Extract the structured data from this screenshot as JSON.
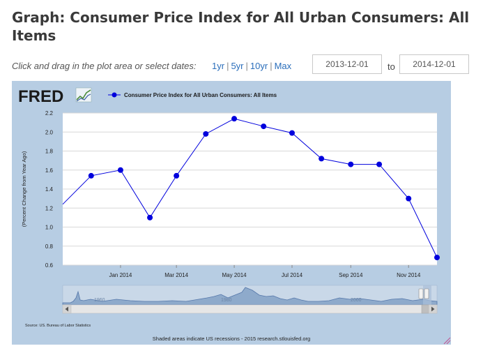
{
  "page": {
    "title": "Graph: Consumer Price Index for All Urban Consumers: All Items"
  },
  "controls": {
    "hint": "Click and drag in the plot area or select dates:",
    "range_links": [
      "1yr",
      "5yr",
      "10yr",
      "Max"
    ],
    "start_date": "2013-12-01",
    "to_label": "to",
    "end_date": "2014-12-01"
  },
  "chart": {
    "logo_text": "FRED",
    "source": "Source: US. Bureau of Labor Statistics",
    "footer": "Shaded areas indicate US recessions - 2015 research.stlouisfed.org",
    "navigator_labels": [
      "1960",
      "1980",
      "2000"
    ]
  },
  "colors": {
    "panel_bg": "#b7cde3",
    "plot_bg": "#ffffff",
    "series": "#0000dd",
    "grid": "#d8d8d8",
    "navigator_fill": "#8eaacb",
    "navigator_line": "#5577aa"
  },
  "chart_data": {
    "type": "line",
    "title": "Consumer Price Index for All Urban Consumers: All Items",
    "xlabel": "",
    "ylabel": "(Percent Change from Year Ago)",
    "legend": "Consumer Price Index for All Urban Consumers: All Items",
    "legend_position": "top",
    "grid": true,
    "ylim": [
      0.6,
      2.2
    ],
    "yticks": [
      0.6,
      0.8,
      1.0,
      1.2,
      1.4,
      1.6,
      1.8,
      2.0,
      2.2
    ],
    "xlim": [
      "2013-11-01",
      "2014-12-01"
    ],
    "xtick_labels": [
      "Jan 2014",
      "Mar 2014",
      "May 2014",
      "Jul 2014",
      "Sep 2014",
      "Nov 2014"
    ],
    "xtick_dates": [
      "2014-01-01",
      "2014-03-01",
      "2014-05-01",
      "2014-07-01",
      "2014-09-01",
      "2014-11-01"
    ],
    "series": [
      {
        "name": "Consumer Price Index for All Urban Consumers: All Items",
        "x": [
          "2013-11-01",
          "2013-12-01",
          "2014-01-01",
          "2014-02-01",
          "2014-03-01",
          "2014-04-01",
          "2014-05-01",
          "2014-06-01",
          "2014-07-01",
          "2014-08-01",
          "2014-09-01",
          "2014-10-01",
          "2014-11-01",
          "2014-12-01"
        ],
        "values": [
          1.24,
          1.54,
          1.6,
          1.1,
          1.54,
          1.98,
          2.14,
          2.06,
          1.99,
          1.72,
          1.66,
          1.66,
          1.3,
          0.68
        ],
        "marker_start_index": 1
      }
    ]
  }
}
